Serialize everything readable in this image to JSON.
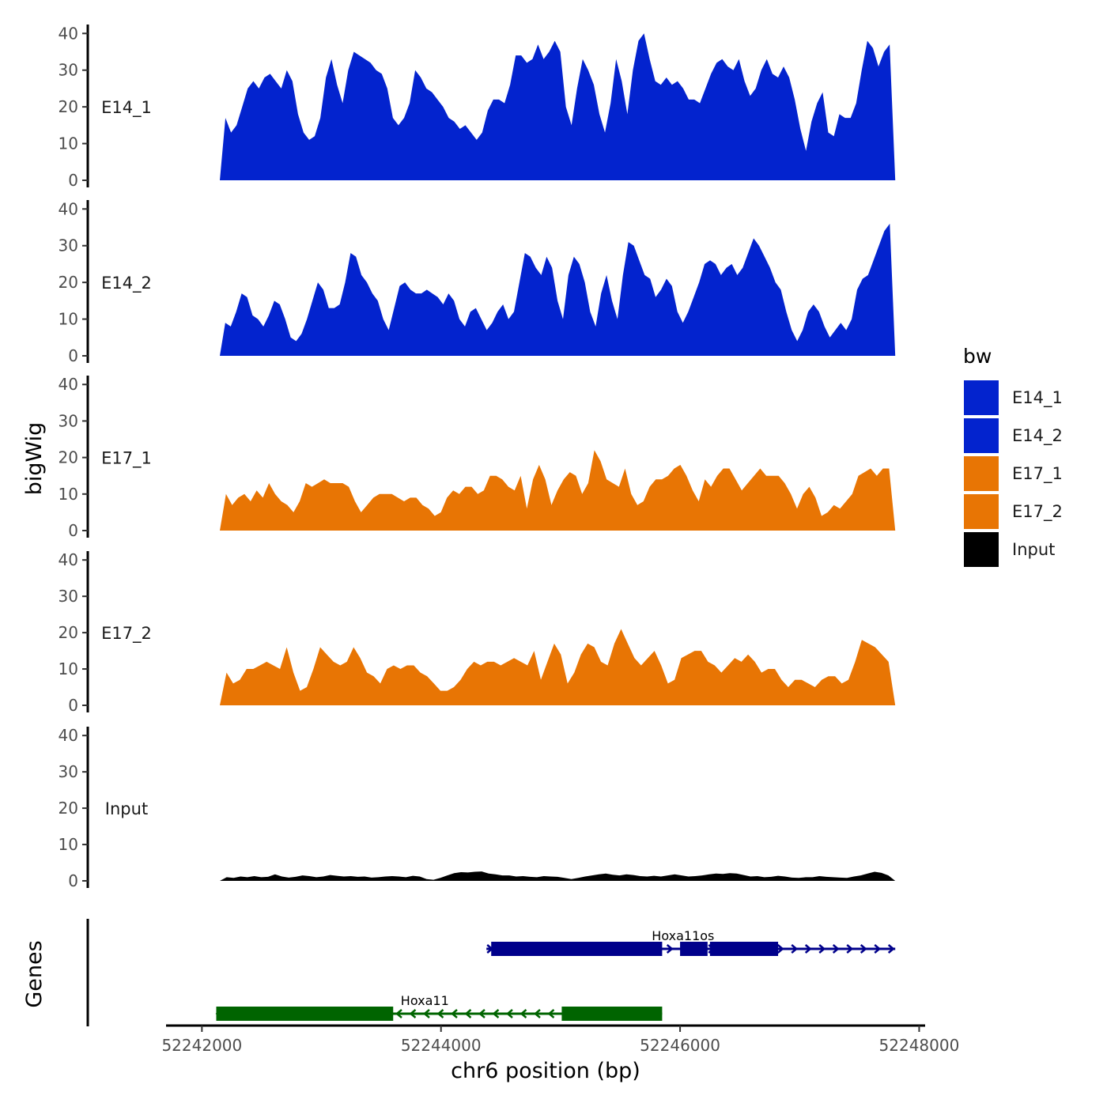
{
  "chart_data": {
    "type": "area",
    "xlabel": "chr6 position (bp)",
    "ylabel": "bigWig",
    "genes_label": "Genes",
    "xlim": [
      52241700,
      52248050
    ],
    "x_ticks": [
      52242000,
      52244000,
      52246000,
      52248000
    ],
    "x_tick_labels": [
      "52242000",
      "52244000",
      "52246000",
      "52248000"
    ],
    "ylim": [
      0,
      42
    ],
    "y_ticks": [
      0,
      10,
      20,
      30,
      40
    ],
    "y_tick_labels": [
      "0",
      "10",
      "20",
      "30",
      "40"
    ],
    "legend": {
      "title": "bw",
      "entries": [
        {
          "name": "E14_1",
          "color": "#0323CE"
        },
        {
          "name": "E14_2",
          "color": "#0323CE"
        },
        {
          "name": "E17_1",
          "color": "#E87504"
        },
        {
          "name": "E17_2",
          "color": "#E87504"
        },
        {
          "name": "Input",
          "color": "#000000"
        }
      ]
    },
    "series": [
      {
        "name": "E14_1",
        "color": "#0323CE",
        "x_start": 52242150,
        "x_end": 52247800,
        "values": [
          0,
          17,
          13,
          15,
          20,
          25,
          27,
          25,
          28,
          29,
          27,
          25,
          30,
          27,
          18,
          13,
          11,
          12,
          17,
          28,
          33,
          26,
          21,
          30,
          35,
          34,
          33,
          32,
          30,
          29,
          25,
          17,
          15,
          17,
          21,
          30,
          28,
          25,
          24,
          22,
          20,
          17,
          16,
          14,
          15,
          13,
          11,
          13,
          19,
          22,
          22,
          21,
          26,
          34,
          34,
          32,
          33,
          37,
          33,
          35,
          38,
          35,
          20,
          15,
          25,
          33,
          30,
          26,
          18,
          13,
          21,
          33,
          27,
          18,
          30,
          38,
          40,
          33,
          27,
          26,
          28,
          26,
          27,
          25,
          22,
          22,
          21,
          25,
          29,
          32,
          33,
          31,
          30,
          33,
          27,
          23,
          25,
          30,
          33,
          29,
          28,
          31,
          28,
          22,
          14,
          8,
          16,
          21,
          24,
          13,
          12,
          18,
          17,
          17,
          21,
          30,
          38,
          36,
          31,
          35,
          37,
          0
        ]
      },
      {
        "name": "E14_2",
        "color": "#0323CE",
        "x_start": 52242150,
        "x_end": 52247800,
        "values": [
          0,
          9,
          8,
          12,
          17,
          16,
          11,
          10,
          8,
          11,
          15,
          14,
          10,
          5,
          4,
          6,
          10,
          15,
          20,
          18,
          13,
          13,
          14,
          20,
          28,
          27,
          22,
          20,
          17,
          15,
          10,
          7,
          13,
          19,
          20,
          18,
          17,
          17,
          18,
          17,
          16,
          14,
          17,
          15,
          10,
          8,
          12,
          13,
          10,
          7,
          9,
          12,
          14,
          10,
          12,
          20,
          28,
          27,
          24,
          22,
          27,
          24,
          15,
          10,
          22,
          27,
          25,
          20,
          12,
          8,
          17,
          22,
          15,
          10,
          22,
          31,
          30,
          26,
          22,
          21,
          16,
          18,
          21,
          19,
          12,
          9,
          12,
          16,
          20,
          25,
          26,
          25,
          22,
          24,
          25,
          22,
          24,
          28,
          32,
          30,
          27,
          24,
          20,
          18,
          12,
          7,
          4,
          7,
          12,
          14,
          12,
          8,
          5,
          7,
          9,
          7,
          10,
          18,
          21,
          22,
          26,
          30,
          34,
          36,
          0
        ]
      },
      {
        "name": "E17_1",
        "color": "#E87504",
        "x_start": 52242150,
        "x_end": 52247800,
        "values": [
          0,
          10,
          7,
          9,
          10,
          8,
          11,
          9,
          13,
          10,
          8,
          7,
          5,
          8,
          13,
          12,
          13,
          14,
          13,
          13,
          13,
          12,
          8,
          5,
          7,
          9,
          10,
          10,
          10,
          9,
          8,
          9,
          9,
          7,
          6,
          4,
          5,
          9,
          11,
          10,
          12,
          12,
          10,
          11,
          15,
          15,
          14,
          12,
          11,
          15,
          6,
          14,
          18,
          14,
          7,
          11,
          14,
          16,
          15,
          10,
          13,
          22,
          19,
          14,
          13,
          12,
          17,
          10,
          7,
          8,
          12,
          14,
          14,
          15,
          17,
          18,
          15,
          11,
          8,
          14,
          12,
          15,
          17,
          17,
          14,
          11,
          13,
          15,
          17,
          15,
          15,
          15,
          13,
          10,
          6,
          10,
          12,
          9,
          4,
          5,
          7,
          6,
          8,
          10,
          15,
          16,
          17,
          15,
          17,
          17,
          0
        ]
      },
      {
        "name": "E17_2",
        "color": "#E87504",
        "x_start": 52242150,
        "x_end": 52247800,
        "values": [
          0,
          9,
          6,
          7,
          10,
          10,
          11,
          12,
          11,
          10,
          16,
          9,
          4,
          5,
          10,
          16,
          14,
          12,
          11,
          12,
          16,
          13,
          9,
          8,
          6,
          10,
          11,
          10,
          11,
          11,
          9,
          8,
          6,
          4,
          4,
          5,
          7,
          10,
          12,
          11,
          12,
          12,
          11,
          12,
          13,
          12,
          11,
          15,
          7,
          12,
          17,
          14,
          6,
          9,
          14,
          17,
          16,
          12,
          11,
          17,
          21,
          17,
          13,
          11,
          13,
          15,
          11,
          6,
          7,
          13,
          14,
          15,
          15,
          12,
          11,
          9,
          11,
          13,
          12,
          14,
          12,
          9,
          10,
          10,
          7,
          5,
          7,
          7,
          6,
          5,
          7,
          8,
          8,
          6,
          7,
          12,
          18,
          17,
          16,
          14,
          12,
          0
        ]
      },
      {
        "name": "Input",
        "color": "#000000",
        "x_start": 52242150,
        "x_end": 52247800,
        "values": [
          0,
          1,
          0.8,
          1.2,
          1,
          1.3,
          1,
          1.1,
          1.8,
          1.2,
          0.9,
          1.1,
          1.5,
          1.3,
          1,
          1.2,
          1.6,
          1.4,
          1.2,
          1.3,
          1.1,
          1.2,
          0.9,
          1,
          1.2,
          1.3,
          1.2,
          1,
          1.4,
          1.2,
          0.5,
          0.3,
          0.8,
          1.5,
          2.1,
          2.4,
          2.3,
          2.5,
          2.6,
          2,
          1.8,
          1.5,
          1.5,
          1.2,
          1.3,
          1.1,
          1,
          1.3,
          1.2,
          1.1,
          0.8,
          0.5,
          0.8,
          1.2,
          1.5,
          1.8,
          2,
          1.7,
          1.5,
          1.8,
          1.6,
          1.3,
          1.2,
          1.4,
          1.2,
          1.5,
          1.8,
          1.5,
          1.2,
          1.3,
          1.5,
          1.8,
          2,
          1.9,
          2.1,
          2,
          1.6,
          1.2,
          1.3,
          1,
          1.1,
          1.4,
          1.2,
          0.9,
          0.8,
          1,
          1,
          1.3,
          1.1,
          1,
          0.9,
          0.8,
          1.2,
          1.5,
          2,
          2.5,
          2.2,
          1.5,
          0
        ]
      }
    ],
    "genes": [
      {
        "name": "Hoxa11os",
        "strand": "+",
        "color": "#00008B",
        "start": 52244380,
        "end": 52247800,
        "exons": [
          [
            52244420,
            52245850
          ],
          [
            52246000,
            52246230
          ],
          [
            52246250,
            52246820
          ]
        ]
      },
      {
        "name": "Hoxa11",
        "strand": "-",
        "color": "#006400",
        "start": 52242120,
        "end": 52245850,
        "exons": [
          [
            52242120,
            52243600
          ],
          [
            52245010,
            52245850
          ]
        ]
      }
    ]
  }
}
